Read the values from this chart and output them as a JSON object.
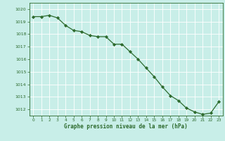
{
  "x": [
    0,
    1,
    2,
    3,
    4,
    5,
    6,
    7,
    8,
    9,
    10,
    11,
    12,
    13,
    14,
    15,
    16,
    17,
    18,
    19,
    20,
    21,
    22,
    23
  ],
  "y": [
    1019.4,
    1019.4,
    1019.5,
    1019.3,
    1018.7,
    1018.3,
    1018.2,
    1017.9,
    1017.8,
    1017.8,
    1017.2,
    1017.2,
    1016.6,
    1016.0,
    1015.3,
    1014.6,
    1013.8,
    1013.1,
    1012.7,
    1012.1,
    1011.8,
    1011.6,
    1011.7,
    1012.6
  ],
  "ylim": [
    1011.5,
    1020.5
  ],
  "yticks": [
    1012,
    1013,
    1014,
    1015,
    1016,
    1017,
    1018,
    1019,
    1020
  ],
  "xlim": [
    -0.5,
    23.5
  ],
  "xticks": [
    0,
    1,
    2,
    3,
    4,
    5,
    6,
    7,
    8,
    9,
    10,
    11,
    12,
    13,
    14,
    15,
    16,
    17,
    18,
    19,
    20,
    21,
    22,
    23
  ],
  "xlabel": "Graphe pression niveau de la mer (hPa)",
  "line_color": "#2d6a2d",
  "marker_color": "#2d6a2d",
  "bg_color": "#c8eee8",
  "grid_color": "#ffffff",
  "axis_color": "#2d6a2d",
  "tick_label_color": "#2d6a2d",
  "xlabel_color": "#2d6a2d",
  "marker": "D",
  "markersize": 2.2,
  "linewidth": 0.9
}
